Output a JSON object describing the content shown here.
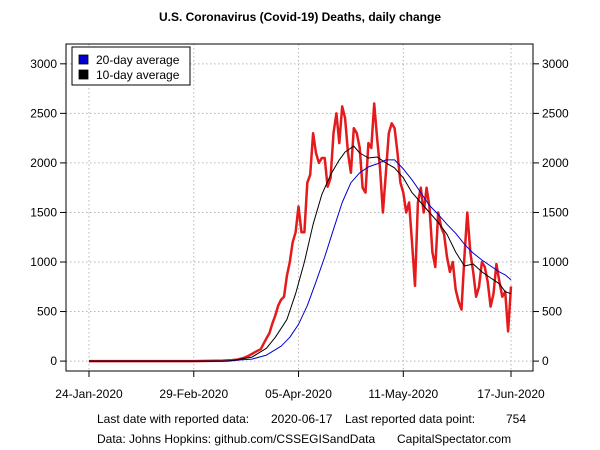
{
  "chart_data": {
    "type": "line",
    "title": "U.S. Coronavirus (Covid-19) Deaths, daily change",
    "xlabel": "",
    "ylabel": "",
    "x_start": "2020-01-24",
    "x_end": "2020-06-17",
    "ylim": [
      -100,
      3200
    ],
    "yticks": [
      0,
      500,
      1000,
      1500,
      2000,
      2500,
      3000
    ],
    "xticks": [
      {
        "label": "24-Jan-2020",
        "date": "2020-01-24"
      },
      {
        "label": "29-Feb-2020",
        "date": "2020-02-29"
      },
      {
        "label": "05-Apr-2020",
        "date": "2020-04-05"
      },
      {
        "label": "11-May-2020",
        "date": "2020-05-11"
      },
      {
        "label": "17-Jun-2020",
        "date": "2020-06-17"
      }
    ],
    "grid": true,
    "legend_position": "top-left",
    "series": [
      {
        "name": "",
        "color": "#e41a1c",
        "points": [
          [
            "2020-01-24",
            0
          ],
          [
            "2020-02-29",
            0
          ],
          [
            "2020-03-05",
            2
          ],
          [
            "2020-03-10",
            5
          ],
          [
            "2020-03-13",
            10
          ],
          [
            "2020-03-15",
            15
          ],
          [
            "2020-03-17",
            30
          ],
          [
            "2020-03-19",
            55
          ],
          [
            "2020-03-21",
            90
          ],
          [
            "2020-03-23",
            120
          ],
          [
            "2020-03-25",
            230
          ],
          [
            "2020-03-26",
            280
          ],
          [
            "2020-03-27",
            380
          ],
          [
            "2020-03-28",
            460
          ],
          [
            "2020-03-29",
            560
          ],
          [
            "2020-03-30",
            620
          ],
          [
            "2020-03-31",
            650
          ],
          [
            "2020-04-01",
            860
          ],
          [
            "2020-04-02",
            1000
          ],
          [
            "2020-04-03",
            1200
          ],
          [
            "2020-04-04",
            1300
          ],
          [
            "2020-04-05",
            1560
          ],
          [
            "2020-04-06",
            1300
          ],
          [
            "2020-04-07",
            1300
          ],
          [
            "2020-04-08",
            1800
          ],
          [
            "2020-04-09",
            1880
          ],
          [
            "2020-04-10",
            2300
          ],
          [
            "2020-04-11",
            2100
          ],
          [
            "2020-04-12",
            2000
          ],
          [
            "2020-04-13",
            2050
          ],
          [
            "2020-04-14",
            2050
          ],
          [
            "2020-04-15",
            1760
          ],
          [
            "2020-04-16",
            1850
          ],
          [
            "2020-04-17",
            2300
          ],
          [
            "2020-04-18",
            2500
          ],
          [
            "2020-04-19",
            2200
          ],
          [
            "2020-04-20",
            2570
          ],
          [
            "2020-04-21",
            2450
          ],
          [
            "2020-04-22",
            2100
          ],
          [
            "2020-04-23",
            1900
          ],
          [
            "2020-04-24",
            2350
          ],
          [
            "2020-04-25",
            2300
          ],
          [
            "2020-04-26",
            2150
          ],
          [
            "2020-04-27",
            1750
          ],
          [
            "2020-04-28",
            1700
          ],
          [
            "2020-04-29",
            2200
          ],
          [
            "2020-04-30",
            2150
          ],
          [
            "2020-05-01",
            2600
          ],
          [
            "2020-05-02",
            2250
          ],
          [
            "2020-05-03",
            1950
          ],
          [
            "2020-05-04",
            1500
          ],
          [
            "2020-05-05",
            1900
          ],
          [
            "2020-05-06",
            2300
          ],
          [
            "2020-05-07",
            2400
          ],
          [
            "2020-05-08",
            2350
          ],
          [
            "2020-05-09",
            2100
          ],
          [
            "2020-05-10",
            1800
          ],
          [
            "2020-05-11",
            1700
          ],
          [
            "2020-05-12",
            1500
          ],
          [
            "2020-05-13",
            1600
          ],
          [
            "2020-05-14",
            1200
          ],
          [
            "2020-05-15",
            760
          ],
          [
            "2020-05-16",
            1600
          ],
          [
            "2020-05-17",
            1750
          ],
          [
            "2020-05-18",
            1500
          ],
          [
            "2020-05-19",
            1750
          ],
          [
            "2020-05-20",
            1550
          ],
          [
            "2020-05-21",
            1100
          ],
          [
            "2020-05-22",
            950
          ],
          [
            "2020-05-23",
            1500
          ],
          [
            "2020-05-24",
            1350
          ],
          [
            "2020-05-25",
            1280
          ],
          [
            "2020-05-26",
            1050
          ],
          [
            "2020-05-27",
            900
          ],
          [
            "2020-05-28",
            1000
          ],
          [
            "2020-05-29",
            720
          ],
          [
            "2020-05-30",
            600
          ],
          [
            "2020-05-31",
            520
          ],
          [
            "2020-06-01",
            1050
          ],
          [
            "2020-06-02",
            1500
          ],
          [
            "2020-06-03",
            1100
          ],
          [
            "2020-06-04",
            900
          ],
          [
            "2020-06-05",
            650
          ],
          [
            "2020-06-06",
            750
          ],
          [
            "2020-06-07",
            1000
          ],
          [
            "2020-06-08",
            950
          ],
          [
            "2020-06-09",
            800
          ],
          [
            "2020-06-10",
            550
          ],
          [
            "2020-06-11",
            680
          ],
          [
            "2020-06-12",
            980
          ],
          [
            "2020-06-13",
            800
          ],
          [
            "2020-06-14",
            650
          ],
          [
            "2020-06-15",
            700
          ],
          [
            "2020-06-16",
            300
          ],
          [
            "2020-06-17",
            754
          ]
        ]
      },
      {
        "name": "20-day average",
        "color": "#0000cc",
        "points": [
          [
            "2020-01-24",
            0
          ],
          [
            "2020-03-10",
            0
          ],
          [
            "2020-03-20",
            20
          ],
          [
            "2020-03-25",
            60
          ],
          [
            "2020-03-30",
            150
          ],
          [
            "2020-04-02",
            240
          ],
          [
            "2020-04-05",
            370
          ],
          [
            "2020-04-08",
            560
          ],
          [
            "2020-04-11",
            800
          ],
          [
            "2020-04-14",
            1050
          ],
          [
            "2020-04-17",
            1330
          ],
          [
            "2020-04-20",
            1600
          ],
          [
            "2020-04-23",
            1800
          ],
          [
            "2020-04-26",
            1900
          ],
          [
            "2020-04-29",
            1960
          ],
          [
            "2020-05-02",
            1990
          ],
          [
            "2020-05-05",
            2030
          ],
          [
            "2020-05-08",
            2030
          ],
          [
            "2020-05-11",
            1940
          ],
          [
            "2020-05-14",
            1830
          ],
          [
            "2020-05-17",
            1700
          ],
          [
            "2020-05-20",
            1570
          ],
          [
            "2020-05-23",
            1480
          ],
          [
            "2020-05-26",
            1380
          ],
          [
            "2020-05-29",
            1290
          ],
          [
            "2020-06-01",
            1180
          ],
          [
            "2020-06-04",
            1090
          ],
          [
            "2020-06-07",
            1020
          ],
          [
            "2020-06-10",
            960
          ],
          [
            "2020-06-13",
            900
          ],
          [
            "2020-06-15",
            870
          ],
          [
            "2020-06-17",
            820
          ]
        ]
      },
      {
        "name": "10-day average",
        "color": "#000000",
        "points": [
          [
            "2020-01-24",
            0
          ],
          [
            "2020-03-12",
            0
          ],
          [
            "2020-03-20",
            40
          ],
          [
            "2020-03-25",
            130
          ],
          [
            "2020-03-28",
            240
          ],
          [
            "2020-04-01",
            420
          ],
          [
            "2020-04-04",
            680
          ],
          [
            "2020-04-07",
            1000
          ],
          [
            "2020-04-10",
            1380
          ],
          [
            "2020-04-13",
            1680
          ],
          [
            "2020-04-16",
            1880
          ],
          [
            "2020-04-19",
            2030
          ],
          [
            "2020-04-21",
            2110
          ],
          [
            "2020-04-24",
            2170
          ],
          [
            "2020-04-26",
            2100
          ],
          [
            "2020-04-29",
            2050
          ],
          [
            "2020-05-02",
            2060
          ],
          [
            "2020-05-05",
            2000
          ],
          [
            "2020-05-08",
            1950
          ],
          [
            "2020-05-11",
            1850
          ],
          [
            "2020-05-14",
            1700
          ],
          [
            "2020-05-17",
            1600
          ],
          [
            "2020-05-20",
            1500
          ],
          [
            "2020-05-23",
            1400
          ],
          [
            "2020-05-26",
            1280
          ],
          [
            "2020-05-29",
            1100
          ],
          [
            "2020-06-01",
            960
          ],
          [
            "2020-06-04",
            980
          ],
          [
            "2020-06-07",
            900
          ],
          [
            "2020-06-10",
            840
          ],
          [
            "2020-06-13",
            780
          ],
          [
            "2020-06-15",
            700
          ],
          [
            "2020-06-17",
            680
          ]
        ]
      }
    ]
  },
  "footer": {
    "last_date_label": "Last date with reported data:",
    "last_date_value": "2020-06-17",
    "last_point_label": "Last reported data point:",
    "last_point_value": "754",
    "source": "Data: Johns Hopkins: github.com/CSSEGISandData",
    "brand": "CapitalSpectator.com"
  }
}
